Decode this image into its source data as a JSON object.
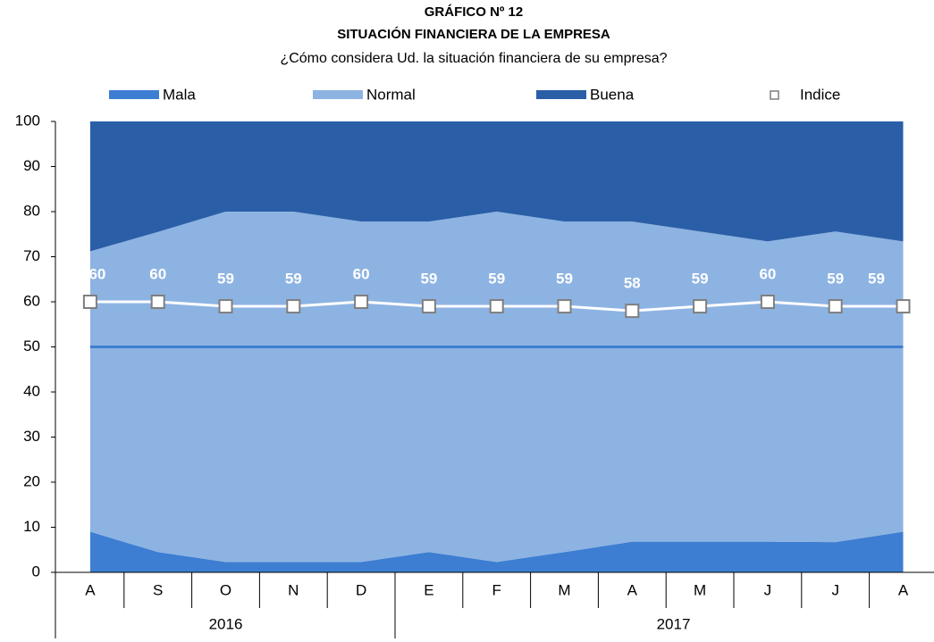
{
  "chart_data": {
    "type": "stacked_area",
    "title": "GRÁFICO Nº 12",
    "subtitle": "SITUACIÓN FINANCIERA DE LA EMPRESA",
    "question": "¿Cómo considera Ud. la situación financiera de su empresa?",
    "categories": [
      "A",
      "S",
      "O",
      "N",
      "D",
      "E",
      "F",
      "M",
      "A",
      "M",
      "J",
      "J",
      "A"
    ],
    "groups": [
      {
        "label": "2016",
        "count": 5
      },
      {
        "label": "2017",
        "count": 8
      }
    ],
    "series": [
      {
        "name": "Mala",
        "color": "#3d7ed2",
        "values": [
          9,
          4.5,
          2.3,
          2.3,
          2.3,
          4.5,
          2.3,
          4.5,
          6.8,
          6.8,
          6.8,
          6.7,
          9
        ]
      },
      {
        "name": "Normal",
        "color": "#8db3e2",
        "values": [
          62.2,
          71,
          77.7,
          77.7,
          75.5,
          73.3,
          77.7,
          73.3,
          71,
          68.8,
          66.6,
          68.9,
          64.4
        ]
      },
      {
        "name": "Buena",
        "color": "#2a5fa7",
        "values": [
          28.8,
          24.5,
          20,
          20,
          22.2,
          22.2,
          20,
          22.2,
          22.2,
          24.4,
          26.6,
          24.4,
          26.6
        ]
      }
    ],
    "index_series": {
      "name": "Indice",
      "values": [
        60,
        60,
        59,
        59,
        60,
        59,
        59,
        59,
        58,
        59,
        60,
        59,
        59
      ]
    },
    "reference_line": 50,
    "ylim": [
      0,
      100
    ],
    "yticks": [
      0,
      10,
      20,
      30,
      40,
      50,
      60,
      70,
      80,
      90,
      100
    ]
  }
}
